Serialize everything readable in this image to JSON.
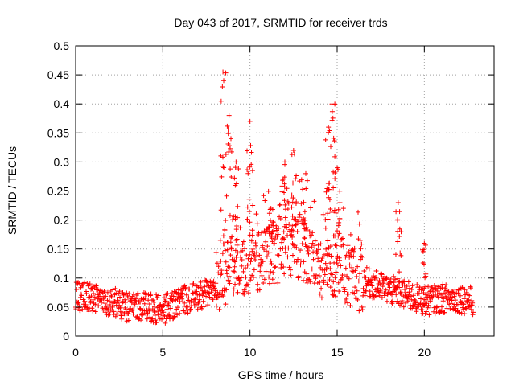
{
  "chart_data": {
    "type": "scatter",
    "title": "Day 043 of 2017, SRMTID for receiver trds",
    "xlabel": "GPS time / hours",
    "ylabel": "SRMTID / TECUs",
    "xlim": [
      0,
      24
    ],
    "ylim": [
      0,
      0.5
    ],
    "x_ticks": [
      "0",
      "5",
      "10",
      "15",
      "20"
    ],
    "y_ticks": [
      "0",
      "0.05",
      "0.1",
      "0.15",
      "0.2",
      "0.25",
      "0.3",
      "0.35",
      "0.4",
      "0.45",
      "0.5"
    ],
    "grid": true,
    "marker": "+",
    "series_color": "#ff0000",
    "x_range_hours": [
      0,
      22.8
    ],
    "baseline_profile": [
      [
        0.0,
        0.07
      ],
      [
        1.0,
        0.065
      ],
      [
        2.0,
        0.06
      ],
      [
        3.0,
        0.05
      ],
      [
        4.0,
        0.05
      ],
      [
        5.0,
        0.045
      ],
      [
        6.0,
        0.06
      ],
      [
        7.0,
        0.07
      ],
      [
        7.8,
        0.075
      ],
      [
        8.3,
        0.1
      ],
      [
        9.0,
        0.12
      ],
      [
        10.0,
        0.12
      ],
      [
        11.0,
        0.14
      ],
      [
        12.0,
        0.15
      ],
      [
        13.0,
        0.15
      ],
      [
        14.0,
        0.12
      ],
      [
        15.0,
        0.12
      ],
      [
        16.0,
        0.1
      ],
      [
        17.0,
        0.09
      ],
      [
        18.0,
        0.08
      ],
      [
        19.0,
        0.07
      ],
      [
        20.0,
        0.06
      ],
      [
        21.0,
        0.065
      ],
      [
        22.0,
        0.065
      ],
      [
        22.8,
        0.06
      ]
    ],
    "peaks": [
      {
        "x": 8.45,
        "y": 0.455
      },
      {
        "x": 8.8,
        "y": 0.38
      },
      {
        "x": 9.2,
        "y": 0.3
      },
      {
        "x": 10.0,
        "y": 0.37
      },
      {
        "x": 11.2,
        "y": 0.22
      },
      {
        "x": 12.0,
        "y": 0.3
      },
      {
        "x": 12.5,
        "y": 0.32
      },
      {
        "x": 13.2,
        "y": 0.28
      },
      {
        "x": 14.5,
        "y": 0.36
      },
      {
        "x": 14.7,
        "y": 0.4
      },
      {
        "x": 15.0,
        "y": 0.29
      },
      {
        "x": 18.5,
        "y": 0.23
      },
      {
        "x": 20.0,
        "y": 0.16
      }
    ]
  }
}
